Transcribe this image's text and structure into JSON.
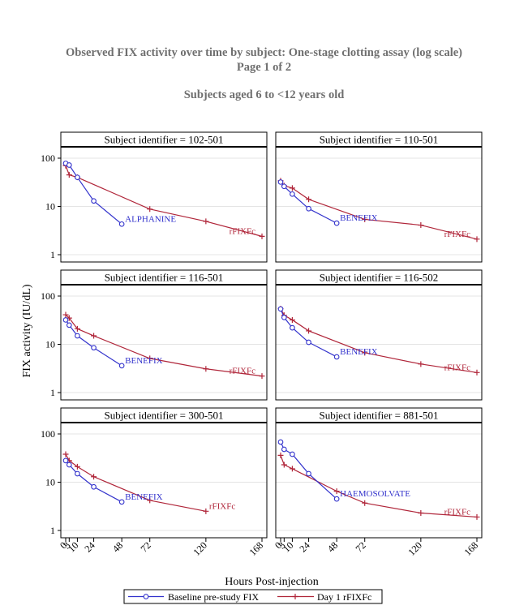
{
  "header": {
    "title": "Observed FIX activity over time by subject: One-stage clotting assay (log scale)",
    "page": "Page 1 of 2",
    "subtitle": "Subjects aged 6 to <12 years old"
  },
  "chart_data": {
    "type": "line",
    "layout": "2x3 panel grid",
    "xlabel": "Hours Post-injection",
    "ylabel": "FIX activity (IU/dL)",
    "x_scale": "linear",
    "y_scale": "log",
    "xlim": [
      0,
      168
    ],
    "ylim": [
      1,
      100
    ],
    "x_ticks": [
      0,
      3,
      10,
      24,
      48,
      72,
      120,
      168
    ],
    "x_tick_labels": [
      "0",
      "3",
      "10",
      "24",
      "48",
      "72",
      "120",
      "168"
    ],
    "y_ticks": [
      1,
      10,
      100
    ],
    "y_tick_labels": [
      "1",
      "10",
      "100"
    ],
    "grid": "horizontal reference lines",
    "legend_position": "bottom",
    "legend": [
      {
        "name": "Baseline pre-study FIX",
        "color": "#3333cc",
        "marker": "circle"
      },
      {
        "name": "Day 1 rFIXFc",
        "color": "#b0263a",
        "marker": "plus"
      }
    ],
    "panels": [
      {
        "label": "Subject identifier = 102-501",
        "baseline": {
          "label": "ALPHANINE",
          "x": [
            0,
            3,
            10,
            24,
            48
          ],
          "y": [
            78,
            72,
            40,
            13,
            4.3
          ]
        },
        "rfixfc": {
          "label": "rFIXFc",
          "x": [
            0,
            3,
            10,
            72,
            120,
            168
          ],
          "y": [
            70,
            45,
            40,
            8.8,
            4.9,
            2.4
          ]
        }
      },
      {
        "label": "Subject identifier = 110-501",
        "baseline": {
          "label": "BENEFIX",
          "x": [
            0,
            3,
            10,
            24,
            48
          ],
          "y": [
            32,
            26,
            18,
            9.0,
            4.5
          ]
        },
        "rfixfc": {
          "label": "rFIXFc",
          "x": [
            0,
            3,
            10,
            24,
            72,
            120,
            168
          ],
          "y": [
            34,
            27,
            24,
            14,
            5.4,
            4.1,
            2.1
          ]
        }
      },
      {
        "label": "Subject identifier = 116-501",
        "baseline": {
          "label": "BENEFIX",
          "x": [
            0,
            3,
            10,
            24,
            48
          ],
          "y": [
            32,
            25,
            15,
            8.5,
            3.6
          ]
        },
        "rfixfc": {
          "label": "rFIXFc",
          "x": [
            0,
            3,
            10,
            24,
            72,
            120,
            168
          ],
          "y": [
            41,
            35,
            21,
            15,
            5.1,
            3.1,
            2.2
          ]
        }
      },
      {
        "label": "Subject identifier = 116-502",
        "baseline": {
          "label": "BENEFIX",
          "x": [
            0,
            3,
            10,
            24,
            48
          ],
          "y": [
            54,
            36,
            22,
            11,
            5.5
          ]
        },
        "rfixfc": {
          "label": "rFIXFc",
          "x": [
            0,
            3,
            10,
            24,
            72,
            120,
            168
          ],
          "y": [
            55,
            40,
            32,
            19,
            6.7,
            3.9,
            2.6
          ]
        }
      },
      {
        "label": "Subject identifier = 300-501",
        "baseline": {
          "label": "BENEFIX",
          "x": [
            0,
            3,
            10,
            24,
            48
          ],
          "y": [
            28,
            23,
            15,
            8.0,
            3.9
          ]
        },
        "rfixfc": {
          "label": "rFIXFc",
          "x": [
            0,
            3,
            10,
            24,
            72,
            120
          ],
          "y": [
            38,
            28,
            21,
            13,
            4.2,
            2.5
          ]
        }
      },
      {
        "label": "Subject identifier = 881-501",
        "baseline": {
          "label": "HAEMOSOLVATE",
          "x": [
            0,
            3,
            10,
            24,
            48
          ],
          "y": [
            68,
            48,
            38,
            15,
            4.5
          ]
        },
        "rfixfc": {
          "label": "rFIXFc",
          "x": [
            0,
            3,
            10,
            48,
            72,
            120,
            168
          ],
          "y": [
            36,
            23,
            19,
            6.5,
            3.7,
            2.3,
            1.9
          ]
        }
      }
    ]
  }
}
